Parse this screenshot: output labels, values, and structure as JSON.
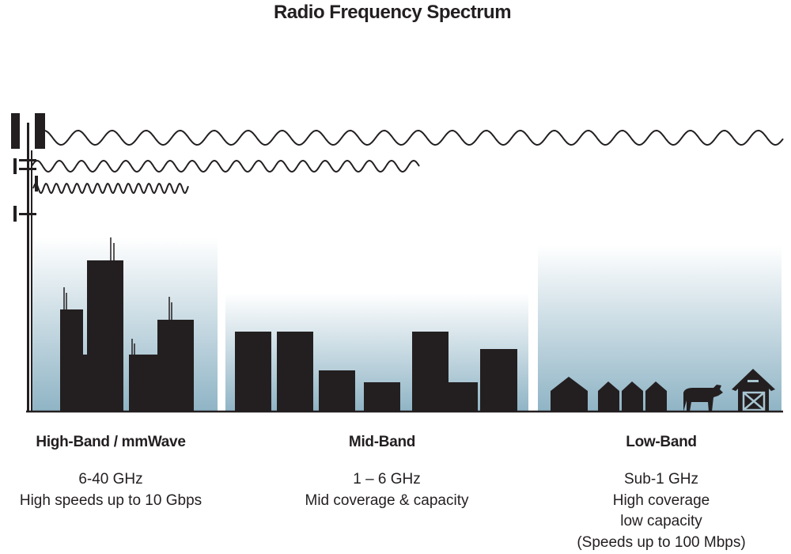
{
  "title": "Radio Frequency Spectrum",
  "bands": [
    {
      "name": "High-Band / mmWave",
      "lines": [
        "6-40 GHz",
        "High speeds up to 10 Gbps"
      ]
    },
    {
      "name": "Mid-Band",
      "lines": [
        "1 – 6 GHz",
        "Mid coverage & capacity"
      ]
    },
    {
      "name": "Low-Band",
      "lines": [
        "Sub-1 GHz",
        "High coverage",
        "low capacity",
        "(Speeds up to 100 Mbps)"
      ]
    }
  ],
  "colors": {
    "ink": "#231f20",
    "sky": "#8fb4c5"
  }
}
